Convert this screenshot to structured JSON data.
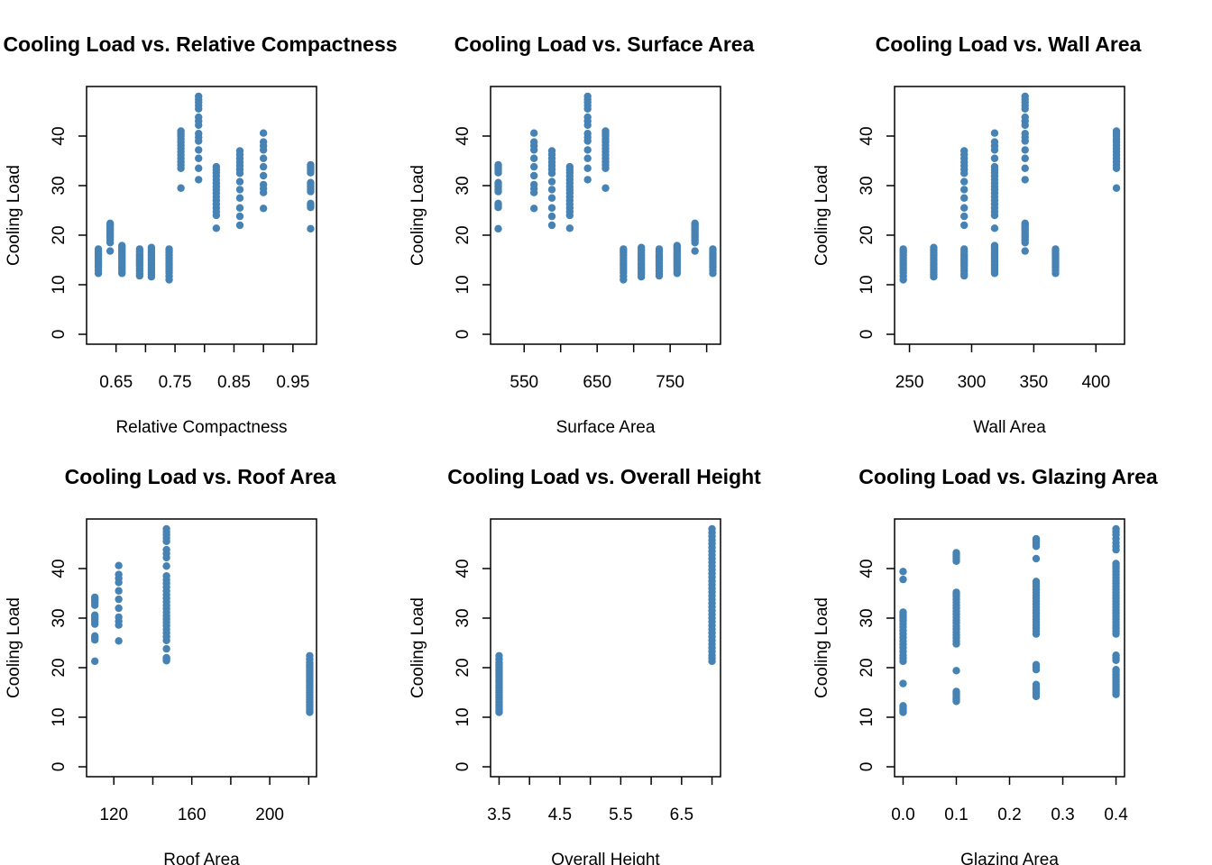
{
  "chart_data": [
    {
      "type": "scatter",
      "title": "Cooling Load vs. Relative Compactness",
      "xlabel": "Relative Compactness",
      "ylabel": "Cooling Load",
      "xlim": [
        0.6,
        0.99
      ],
      "ylim": [
        -2,
        50
      ],
      "xticks": [
        0.65,
        0.7,
        0.75,
        0.8,
        0.85,
        0.9,
        0.95
      ],
      "xtick_labels": [
        "0.65",
        "",
        "0.75",
        "",
        "0.85",
        "",
        "0.95"
      ],
      "yticks": [
        0,
        10,
        20,
        30,
        40
      ],
      "ytick_labels": [
        "0",
        "10",
        "20",
        "30",
        "40"
      ],
      "color": "#4682B4",
      "groups": [
        {
          "x": 0.62,
          "y": [
            12.3,
            13.5,
            14.2,
            15.0,
            15.8,
            16.5,
            17.2
          ]
        },
        {
          "x": 0.64,
          "y": [
            16.8,
            18.5,
            19.5,
            20.2,
            21.0,
            21.8,
            22.4
          ]
        },
        {
          "x": 0.66,
          "y": [
            12.3,
            13.2,
            14.0,
            14.8,
            15.6,
            16.4,
            17.2,
            17.9
          ]
        },
        {
          "x": 0.69,
          "y": [
            11.8,
            12.8,
            13.8,
            14.6,
            15.4,
            16.2,
            17.2
          ]
        },
        {
          "x": 0.71,
          "y": [
            11.6,
            12.6,
            13.6,
            14.5,
            15.5,
            16.5,
            17.5
          ]
        },
        {
          "x": 0.74,
          "y": [
            11.0,
            12.4,
            13.4,
            14.4,
            15.4,
            16.4,
            17.2
          ]
        },
        {
          "x": 0.76,
          "y": [
            29.5,
            33.5,
            34.8,
            36.2,
            37.5,
            38.8,
            40.0,
            41.0
          ]
        },
        {
          "x": 0.79,
          "y": [
            31.2,
            33.5,
            35.5,
            37.2,
            39.0,
            40.5,
            42.2,
            43.8,
            45.5,
            46.8,
            48.0
          ]
        },
        {
          "x": 0.82,
          "y": [
            21.4,
            24.0,
            25.5,
            27.0,
            28.5,
            29.8,
            31.2,
            32.6,
            33.8
          ]
        },
        {
          "x": 0.86,
          "y": [
            22.0,
            23.8,
            25.5,
            27.5,
            29.2,
            30.8,
            32.5,
            34.0,
            35.5,
            37.0
          ]
        },
        {
          "x": 0.9,
          "y": [
            25.4,
            28.6,
            30.2,
            32.0,
            33.8,
            35.5,
            37.2,
            38.8,
            40.6
          ]
        },
        {
          "x": 0.98,
          "y": [
            21.3,
            25.6,
            26.4,
            28.8,
            29.8,
            30.6,
            32.6,
            33.6,
            34.2
          ]
        }
      ]
    },
    {
      "type": "scatter",
      "title": "Cooling Load vs. Surface Area",
      "xlabel": "Surface Area",
      "ylabel": "Cooling Load",
      "xlim": [
        504,
        819
      ],
      "ylim": [
        -2,
        50
      ],
      "xticks": [
        550,
        600,
        650,
        700,
        750,
        800
      ],
      "xtick_labels": [
        "550",
        "",
        "650",
        "",
        "750",
        ""
      ],
      "yticks": [
        0,
        10,
        20,
        30,
        40
      ],
      "ytick_labels": [
        "0",
        "10",
        "20",
        "30",
        "40"
      ],
      "color": "#4682B4",
      "groups": [
        {
          "x": 514.5,
          "y": [
            21.3,
            25.6,
            26.4,
            28.8,
            29.8,
            30.6,
            32.6,
            33.6,
            34.2
          ]
        },
        {
          "x": 563.5,
          "y": [
            25.4,
            28.6,
            30.2,
            32.0,
            33.8,
            35.5,
            37.2,
            38.8,
            40.6
          ]
        },
        {
          "x": 588.0,
          "y": [
            22.0,
            23.8,
            25.5,
            27.5,
            29.2,
            30.8,
            32.5,
            34.0,
            35.5,
            37.0
          ]
        },
        {
          "x": 612.5,
          "y": [
            21.4,
            24.0,
            25.5,
            27.0,
            28.5,
            29.8,
            31.2,
            32.6,
            33.8
          ]
        },
        {
          "x": 637.0,
          "y": [
            31.2,
            33.5,
            35.5,
            37.2,
            39.0,
            40.5,
            42.2,
            43.8,
            45.5,
            46.8,
            48.0
          ]
        },
        {
          "x": 661.5,
          "y": [
            29.5,
            33.5,
            34.8,
            36.2,
            37.5,
            38.8,
            40.0,
            41.0
          ]
        },
        {
          "x": 686.0,
          "y": [
            11.0,
            12.4,
            13.4,
            14.4,
            15.4,
            16.4,
            17.2
          ]
        },
        {
          "x": 710.5,
          "y": [
            11.6,
            12.6,
            13.6,
            14.5,
            15.5,
            16.5,
            17.5
          ]
        },
        {
          "x": 735.0,
          "y": [
            11.8,
            12.8,
            13.8,
            14.6,
            15.4,
            16.2,
            17.2
          ]
        },
        {
          "x": 759.5,
          "y": [
            12.3,
            13.2,
            14.0,
            14.8,
            15.6,
            16.4,
            17.2,
            17.9
          ]
        },
        {
          "x": 784.0,
          "y": [
            16.8,
            18.5,
            19.5,
            20.2,
            21.0,
            21.8,
            22.4
          ]
        },
        {
          "x": 808.5,
          "y": [
            12.3,
            13.5,
            14.2,
            15.0,
            15.8,
            16.5,
            17.2
          ]
        }
      ]
    },
    {
      "type": "scatter",
      "title": "Cooling Load vs. Wall Area",
      "xlabel": "Wall Area",
      "ylabel": "Cooling Load",
      "xlim": [
        238,
        423
      ],
      "ylim": [
        -2,
        50
      ],
      "xticks": [
        250,
        300,
        350,
        400
      ],
      "xtick_labels": [
        "250",
        "300",
        "350",
        "400"
      ],
      "yticks": [
        0,
        10,
        20,
        30,
        40
      ],
      "ytick_labels": [
        "0",
        "10",
        "20",
        "30",
        "40"
      ],
      "color": "#4682B4",
      "groups": [
        {
          "x": 245.0,
          "y": [
            11.0,
            12.4,
            13.4,
            14.4,
            15.4,
            16.4,
            17.2
          ]
        },
        {
          "x": 269.5,
          "y": [
            11.6,
            12.6,
            13.6,
            14.5,
            15.5,
            16.5,
            17.5
          ]
        },
        {
          "x": 294.0,
          "y": [
            11.8,
            12.8,
            13.8,
            14.6,
            15.4,
            16.2,
            17.2,
            22.0,
            23.8,
            25.5,
            27.5,
            29.2,
            30.8,
            32.5,
            34.0,
            35.5,
            37.0
          ]
        },
        {
          "x": 318.5,
          "y": [
            12.3,
            13.2,
            14.0,
            14.8,
            15.6,
            16.4,
            17.2,
            17.9,
            21.4,
            24.0,
            25.5,
            27.0,
            28.5,
            29.8,
            31.2,
            32.6,
            33.8,
            35.5,
            37.2,
            38.8,
            40.6
          ]
        },
        {
          "x": 343.0,
          "y": [
            16.8,
            18.5,
            19.5,
            20.2,
            21.0,
            21.8,
            22.4,
            31.2,
            33.5,
            35.5,
            37.2,
            39.0,
            40.5,
            42.2,
            43.8,
            45.5,
            46.8,
            48.0
          ]
        },
        {
          "x": 367.5,
          "y": [
            12.3,
            13.5,
            14.2,
            15.0,
            15.8,
            16.5,
            17.2
          ]
        },
        {
          "x": 416.5,
          "y": [
            29.5,
            33.5,
            34.8,
            36.2,
            37.5,
            38.8,
            40.0,
            41.0
          ]
        }
      ]
    },
    {
      "type": "scatter",
      "title": "Cooling Load vs. Roof Area",
      "xlabel": "Roof Area",
      "ylabel": "Cooling Load",
      "xlim": [
        106,
        224
      ],
      "ylim": [
        -2,
        50
      ],
      "xticks": [
        120,
        140,
        160,
        180,
        200,
        220
      ],
      "xtick_labels": [
        "120",
        "",
        "160",
        "",
        "200",
        ""
      ],
      "yticks": [
        0,
        10,
        20,
        30,
        40
      ],
      "ytick_labels": [
        "0",
        "10",
        "20",
        "30",
        "40"
      ],
      "color": "#4682B4",
      "groups": [
        {
          "x": 110.25,
          "y": [
            21.3,
            25.6,
            26.4,
            28.8,
            29.8,
            30.6,
            32.6,
            33.6,
            34.2
          ]
        },
        {
          "x": 122.5,
          "y": [
            25.4,
            28.6,
            30.2,
            32.0,
            33.8,
            35.5,
            37.2,
            38.8,
            40.6
          ]
        },
        {
          "x": 147.0,
          "y": [
            21.4,
            22.0,
            23.8,
            25.5,
            27.0,
            28.5,
            29.8,
            31.2,
            32.6,
            34.0,
            35.5,
            37.0,
            38.5,
            40.5,
            42.2,
            43.8,
            45.5,
            46.8,
            48.0
          ]
        },
        {
          "x": 220.5,
          "y": [
            11.0,
            12.0,
            13.0,
            14.0,
            15.0,
            16.0,
            17.0,
            18.0,
            19.0,
            20.0,
            21.0,
            22.4
          ]
        }
      ]
    },
    {
      "type": "scatter",
      "title": "Cooling Load vs. Overall Height",
      "xlabel": "Overall Height",
      "ylabel": "Cooling Load",
      "xlim": [
        3.36,
        7.14
      ],
      "ylim": [
        -2,
        50
      ],
      "xticks": [
        3.5,
        4.0,
        4.5,
        5.0,
        5.5,
        6.0,
        6.5,
        7.0
      ],
      "xtick_labels": [
        "3.5",
        "",
        "4.5",
        "",
        "5.5",
        "",
        "6.5",
        ""
      ],
      "yticks": [
        0,
        10,
        20,
        30,
        40
      ],
      "ytick_labels": [
        "0",
        "10",
        "20",
        "30",
        "40"
      ],
      "color": "#4682B4",
      "groups": [
        {
          "x": 3.5,
          "y": [
            11.0,
            12.0,
            13.0,
            14.0,
            15.0,
            16.0,
            17.0,
            18.0,
            19.0,
            20.0,
            21.0,
            22.4
          ]
        },
        {
          "x": 7.0,
          "y": [
            21.3,
            22.5,
            24.0,
            25.5,
            27.0,
            28.5,
            30.0,
            31.5,
            33.0,
            34.5,
            36.0,
            37.5,
            39.0,
            40.5,
            42.0,
            43.5,
            45.0,
            46.5,
            48.0
          ]
        }
      ]
    },
    {
      "type": "scatter",
      "title": "Cooling Load vs. Glazing Area",
      "xlabel": "Glazing Area",
      "ylabel": "Cooling Load",
      "xlim": [
        -0.016,
        0.416
      ],
      "ylim": [
        -2,
        50
      ],
      "xticks": [
        0.0,
        0.1,
        0.2,
        0.3,
        0.4
      ],
      "xtick_labels": [
        "0.0",
        "0.1",
        "0.2",
        "0.3",
        "0.4"
      ],
      "yticks": [
        0,
        10,
        20,
        30,
        40
      ],
      "ytick_labels": [
        "0",
        "10",
        "20",
        "30",
        "40"
      ],
      "color": "#4682B4",
      "groups": [
        {
          "x": 0.0,
          "y": [
            11.0,
            11.6,
            12.3,
            16.8,
            21.3,
            22.5,
            24.0,
            25.4,
            26.8,
            28.2,
            29.5,
            30.5,
            31.2,
            37.8,
            39.4
          ]
        },
        {
          "x": 0.1,
          "y": [
            13.2,
            13.8,
            14.6,
            15.2,
            19.4,
            24.8,
            26.0,
            27.2,
            28.4,
            29.6,
            30.8,
            32.0,
            33.2,
            34.4,
            35.2,
            41.5,
            42.5,
            43.2
          ]
        },
        {
          "x": 0.25,
          "y": [
            14.2,
            15.0,
            15.8,
            16.6,
            19.6,
            20.6,
            26.8,
            28.0,
            29.2,
            30.4,
            31.6,
            32.8,
            34.0,
            35.2,
            36.4,
            37.4,
            42.0,
            44.5,
            45.4,
            46.0
          ]
        },
        {
          "x": 0.4,
          "y": [
            14.6,
            15.6,
            16.6,
            17.6,
            18.6,
            19.6,
            21.5,
            22.5,
            26.8,
            28.0,
            29.2,
            30.4,
            31.6,
            32.8,
            34.0,
            35.2,
            36.4,
            37.6,
            38.8,
            40.0,
            41.0,
            43.8,
            45.2,
            46.8,
            48.0
          ]
        }
      ]
    }
  ]
}
